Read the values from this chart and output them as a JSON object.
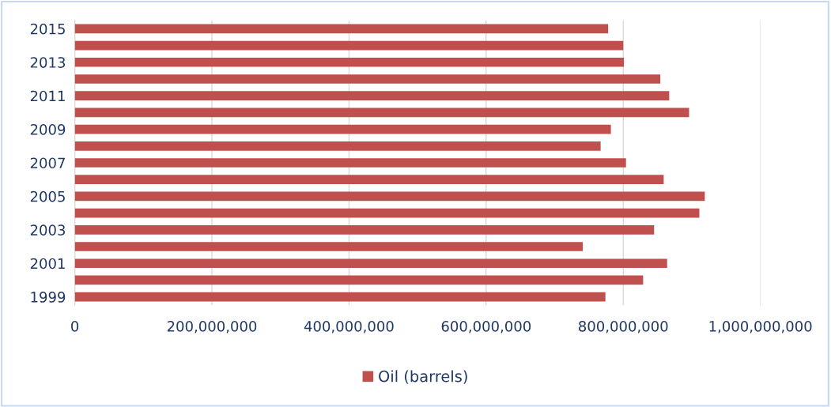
{
  "chart_data": {
    "type": "bar",
    "orientation": "horizontal",
    "categories": [
      "2015",
      null,
      "2013",
      null,
      "2011",
      null,
      "2009",
      null,
      "2007",
      null,
      "2005",
      null,
      "2003",
      null,
      "2001",
      null,
      "1999"
    ],
    "series": [
      {
        "name": "Oil (barrels)",
        "color": "#c0504d",
        "values": [
          778000000,
          800000000,
          801000000,
          854000000,
          867000000,
          896000000,
          782000000,
          767000000,
          804000000,
          859000000,
          919000000,
          911000000,
          845000000,
          741000000,
          864000000,
          829000000,
          774000000
        ]
      }
    ],
    "xlim": [
      0,
      1000000000
    ],
    "xticks": [
      {
        "value": 0,
        "label": "0"
      },
      {
        "value": 200000000,
        "label": "200,000,000"
      },
      {
        "value": 400000000,
        "label": "400,000,000"
      },
      {
        "value": 600000000,
        "label": "600,000,000"
      },
      {
        "value": 800000000,
        "label": "800,000,000"
      },
      {
        "value": 1000000000,
        "label": "1,000,000,000"
      }
    ],
    "grid": "x",
    "legend": "bottom"
  }
}
